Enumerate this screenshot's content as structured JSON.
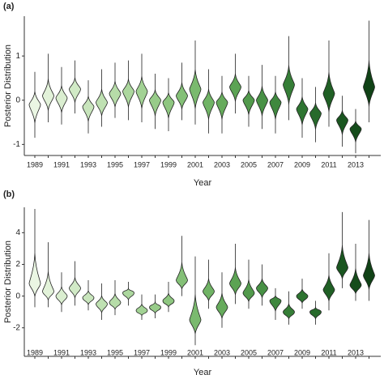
{
  "chart_data": [
    {
      "type": "violin",
      "label": "(a)",
      "y_label": "Posterior Distribution",
      "x_label": "Year",
      "categories": [
        "1989",
        null,
        "1991",
        null,
        "1993",
        null,
        "1995",
        null,
        "1997",
        null,
        "1999",
        null,
        "2001",
        null,
        "2003",
        null,
        "2005",
        null,
        "2007",
        null,
        "2009",
        null,
        "2011",
        null,
        "2013",
        null
      ],
      "values": [
        -0.1,
        0.1,
        0.05,
        0.25,
        -0.15,
        -0.05,
        0.15,
        0.2,
        0.2,
        0.0,
        -0.05,
        0.1,
        0.25,
        -0.05,
        -0.05,
        0.3,
        0.0,
        0.0,
        -0.05,
        0.35,
        -0.2,
        -0.3,
        0.15,
        -0.45,
        -0.65,
        0.3
      ],
      "max": [
        0.64,
        1.05,
        0.75,
        0.9,
        0.45,
        0.7,
        0.85,
        0.9,
        1.05,
        0.6,
        0.5,
        0.85,
        1.35,
        0.7,
        0.55,
        1.05,
        0.55,
        0.8,
        0.55,
        1.45,
        0.5,
        0.3,
        1.35,
        0.1,
        -0.2,
        1.8
      ],
      "min": [
        -0.85,
        -0.5,
        -0.55,
        -0.3,
        -0.75,
        -0.6,
        -0.4,
        -0.45,
        -0.5,
        -0.65,
        -0.7,
        -0.45,
        -0.55,
        -0.75,
        -0.75,
        -0.3,
        -0.6,
        -0.65,
        -0.75,
        -0.45,
        -0.85,
        -0.95,
        -0.6,
        -1.05,
        -1.2,
        -0.5
      ],
      "colors": [
        "#eaf6e3",
        "#e2f2d9",
        "#daeed0",
        "#d1eac6",
        "#c8e5bc",
        "#bfe1b2",
        "#b6dca8",
        "#acd79e",
        "#a2d294",
        "#98cc8a",
        "#8ec680",
        "#84c077",
        "#7aba6e",
        "#70b365",
        "#66ab5c",
        "#5ca354",
        "#529a4c",
        "#489145",
        "#3f883e",
        "#367e37",
        "#2e7431",
        "#276a2b",
        "#206025",
        "#1a5620",
        "#154c1b",
        "#104216"
      ],
      "ylim": [
        -1.25,
        1.9
      ],
      "yticks": [
        -1,
        0,
        1
      ]
    },
    {
      "type": "violin",
      "label": "(b)",
      "y_label": "Posterior Distribution",
      "x_label": "Year",
      "categories": [
        "1989",
        null,
        "1991",
        null,
        "1993",
        null,
        "1995",
        null,
        "1997",
        null,
        "1999",
        null,
        "2001",
        null,
        "2003",
        null,
        "2005",
        null,
        "2007",
        null,
        "2009",
        null,
        "2011",
        null,
        "2013",
        null
      ],
      "values": [
        0.8,
        0.3,
        0.0,
        0.5,
        -0.1,
        -0.5,
        -0.4,
        0.2,
        -0.9,
        -0.7,
        -0.3,
        1.0,
        -1.5,
        0.3,
        -0.7,
        0.8,
        0.2,
        0.5,
        -0.3,
        -1.0,
        0.0,
        -1.0,
        0.4,
        1.8,
        0.7,
        1.3
      ],
      "max": [
        5.5,
        3.4,
        1.5,
        2.2,
        1.0,
        0.8,
        1.0,
        0.9,
        0.1,
        0.1,
        0.9,
        3.8,
        2.5,
        2.3,
        1.5,
        3.3,
        2.3,
        2.0,
        0.5,
        0.3,
        1.1,
        -0.3,
        2.7,
        5.3,
        3.3,
        4.8
      ],
      "min": [
        -0.7,
        -0.7,
        -1.0,
        -0.6,
        -0.9,
        -1.5,
        -1.2,
        -0.6,
        -1.5,
        -1.4,
        -1.0,
        0.0,
        -3.1,
        -0.8,
        -2.0,
        -0.5,
        -0.8,
        -0.6,
        -1.5,
        -1.8,
        -0.8,
        -1.8,
        -0.9,
        0.5,
        -0.3,
        -0.3
      ],
      "colors": [
        "#eaf6e3",
        "#e2f2d9",
        "#daeed0",
        "#d1eac6",
        "#c8e5bc",
        "#bfe1b2",
        "#b6dca8",
        "#acd79e",
        "#a2d294",
        "#98cc8a",
        "#8ec680",
        "#84c077",
        "#7aba6e",
        "#70b365",
        "#66ab5c",
        "#5ca354",
        "#529a4c",
        "#489145",
        "#3f883e",
        "#367e37",
        "#2e7431",
        "#276a2b",
        "#206025",
        "#1a5620",
        "#154c1b",
        "#104216"
      ],
      "ylim": [
        -3.8,
        5.6
      ],
      "yticks": [
        -2,
        0,
        2,
        4
      ]
    }
  ]
}
